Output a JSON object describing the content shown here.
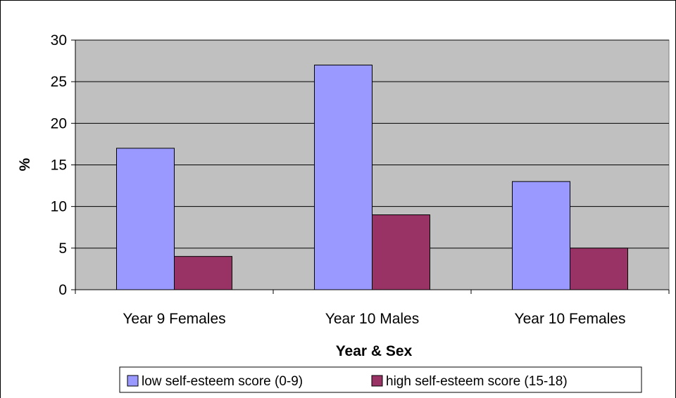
{
  "chart_data": {
    "type": "bar",
    "title": "",
    "xlabel": "Year & Sex",
    "ylabel": "%",
    "categories": [
      "Year 9 Females",
      "Year 10 Males",
      "Year 10 Females"
    ],
    "series": [
      {
        "name": "low self-esteem score (0-9)",
        "values": [
          17,
          27,
          13
        ],
        "color": "#9999ff"
      },
      {
        "name": "high self-esteem score (15-18)",
        "values": [
          4,
          9,
          5
        ],
        "color": "#993366"
      }
    ],
    "ylim": [
      0,
      30
    ],
    "yticks": [
      "0",
      "5",
      "10",
      "15",
      "20",
      "25",
      "30"
    ],
    "grid": true,
    "legend": "bottom",
    "colors": {
      "plot_background": "#c0c0c0",
      "gridline": "#000000"
    }
  }
}
